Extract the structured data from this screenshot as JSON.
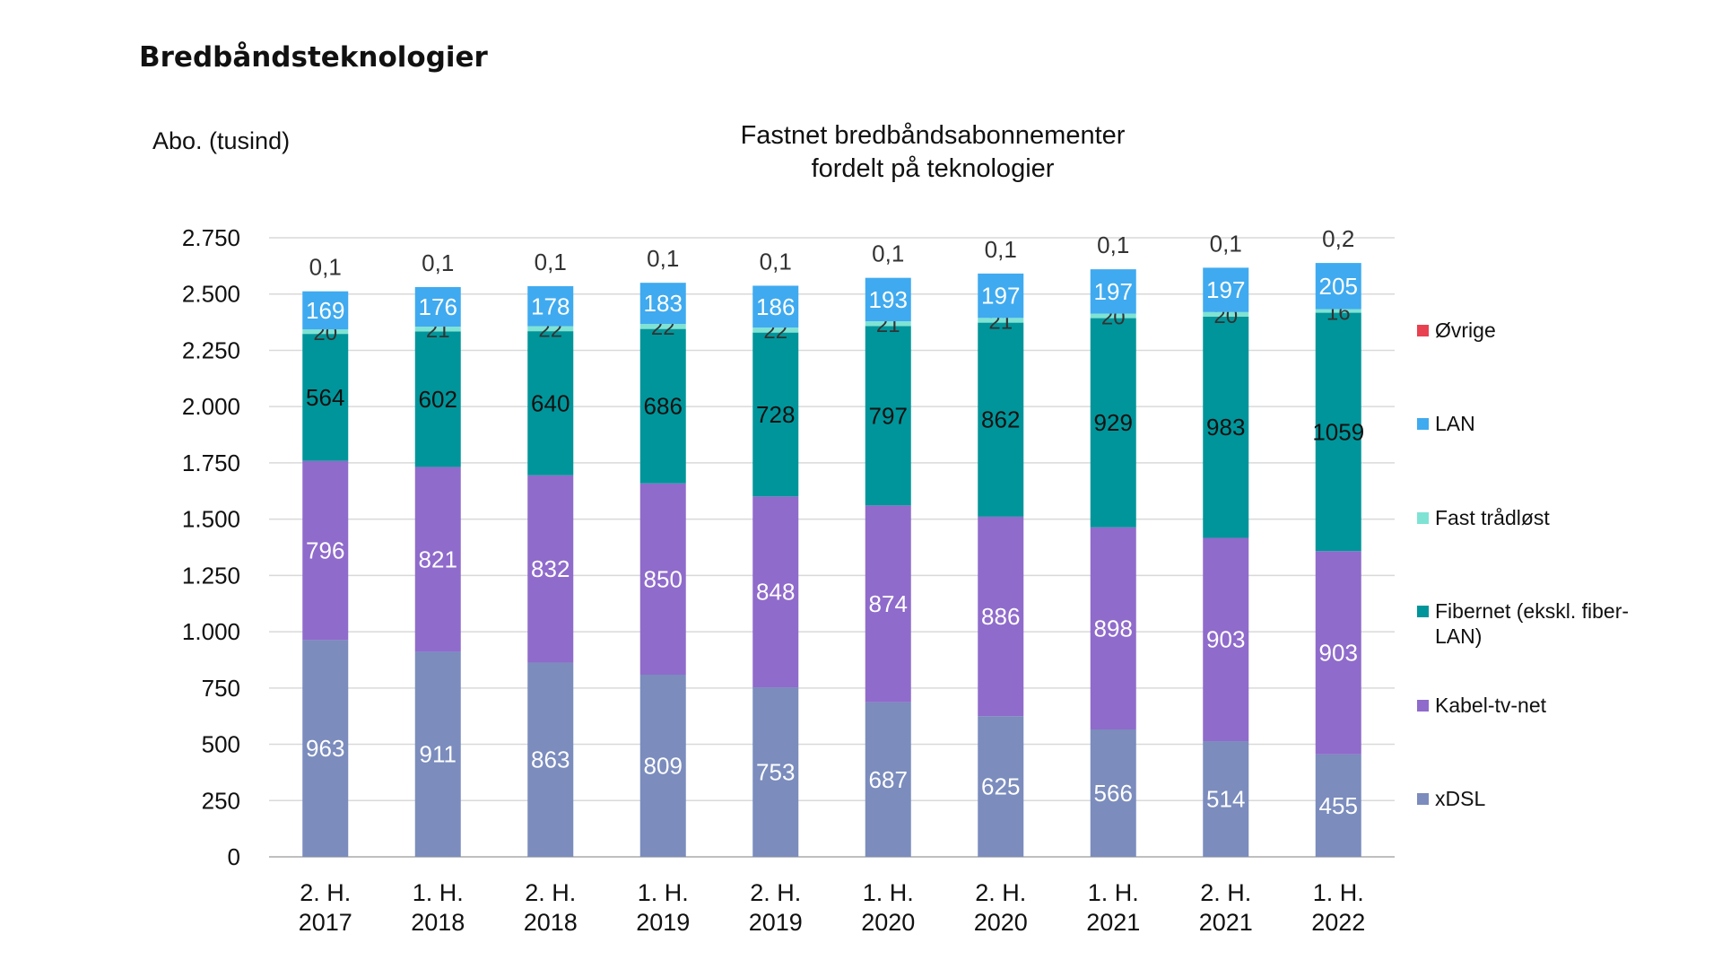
{
  "heading": "Bredbåndsteknologier",
  "chart_data": {
    "type": "bar",
    "stacked": true,
    "title": "Fastnet bredbåndsabonnementer fordelt på teknologier",
    "title_lines": [
      "Fastnet bredbåndsabonnementer",
      "fordelt på teknologier"
    ],
    "ylabel": "Abo. (tusind)",
    "xlabel": "",
    "ylim": [
      0,
      2750
    ],
    "yticks": [
      0,
      250,
      500,
      750,
      1000,
      1250,
      1500,
      1750,
      2000,
      2250,
      2500,
      2750
    ],
    "ytick_labels": [
      "0",
      "250",
      "500",
      "750",
      "1.000",
      "1.250",
      "1.500",
      "1.750",
      "2.000",
      "2.250",
      "2.500",
      "2.750"
    ],
    "grid": true,
    "legend_position": "right",
    "categories": [
      [
        "2. H.",
        "2017"
      ],
      [
        "1. H.",
        "2018"
      ],
      [
        "2. H.",
        "2018"
      ],
      [
        "1. H.",
        "2019"
      ],
      [
        "2. H.",
        "2019"
      ],
      [
        "1. H.",
        "2020"
      ],
      [
        "2. H.",
        "2020"
      ],
      [
        "1. H.",
        "2021"
      ],
      [
        "2. H.",
        "2021"
      ],
      [
        "1. H.",
        "2022"
      ]
    ],
    "series": [
      {
        "name": "xDSL",
        "color": "#7b8cbd",
        "label_color": "#ffffff",
        "values": [
          963,
          911,
          863,
          809,
          753,
          687,
          625,
          566,
          514,
          455
        ],
        "labels": [
          "963",
          "911",
          "863",
          "809",
          "753",
          "687",
          "625",
          "566",
          "514",
          "455"
        ]
      },
      {
        "name": "Kabel-tv-net",
        "color": "#8f6bcb",
        "label_color": "#ffffff",
        "values": [
          796,
          821,
          832,
          850,
          848,
          874,
          886,
          898,
          903,
          903
        ],
        "labels": [
          "796",
          "821",
          "832",
          "850",
          "848",
          "874",
          "886",
          "898",
          "903",
          "903"
        ]
      },
      {
        "name": "Fibernet (ekskl. fiber-LAN)",
        "color": "#00959a",
        "label_color": "#111111",
        "values": [
          564,
          602,
          640,
          686,
          728,
          797,
          862,
          929,
          983,
          1059
        ],
        "labels": [
          "564",
          "602",
          "640",
          "686",
          "728",
          "797",
          "862",
          "929",
          "983",
          "1059"
        ]
      },
      {
        "name": "Fast trådløst",
        "color": "#7fe3d4",
        "label_color": "#333333",
        "values": [
          20,
          21,
          22,
          22,
          22,
          21,
          21,
          20,
          20,
          16
        ],
        "labels": [
          "20",
          "21",
          "22",
          "22",
          "22",
          "21",
          "21",
          "20",
          "20",
          "16"
        ]
      },
      {
        "name": "LAN",
        "color": "#3faaef",
        "label_color": "#ffffff",
        "values": [
          169,
          176,
          178,
          183,
          186,
          193,
          197,
          197,
          197,
          205
        ],
        "labels": [
          "169",
          "176",
          "178",
          "183",
          "186",
          "193",
          "197",
          "197",
          "197",
          "205"
        ]
      },
      {
        "name": "Øvrige",
        "color": "#e8414f",
        "label_color": "#333333",
        "values": [
          0.1,
          0.1,
          0.1,
          0.1,
          0.1,
          0.1,
          0.1,
          0.1,
          0.1,
          0.2
        ],
        "labels": [
          "0,1",
          "0,1",
          "0,1",
          "0,1",
          "0,1",
          "0,1",
          "0,1",
          "0,1",
          "0,1",
          "0,2"
        ]
      }
    ],
    "legend": [
      {
        "name": "Øvrige",
        "color": "#e8414f"
      },
      {
        "name": "LAN",
        "color": "#3faaef"
      },
      {
        "name": "Fast trådløst",
        "color": "#7fe3d4"
      },
      {
        "name": "Fibernet (ekskl. fiber-LAN)",
        "color": "#00959a"
      },
      {
        "name": "Kabel-tv-net",
        "color": "#8f6bcb"
      },
      {
        "name": "xDSL",
        "color": "#7b8cbd"
      }
    ]
  }
}
